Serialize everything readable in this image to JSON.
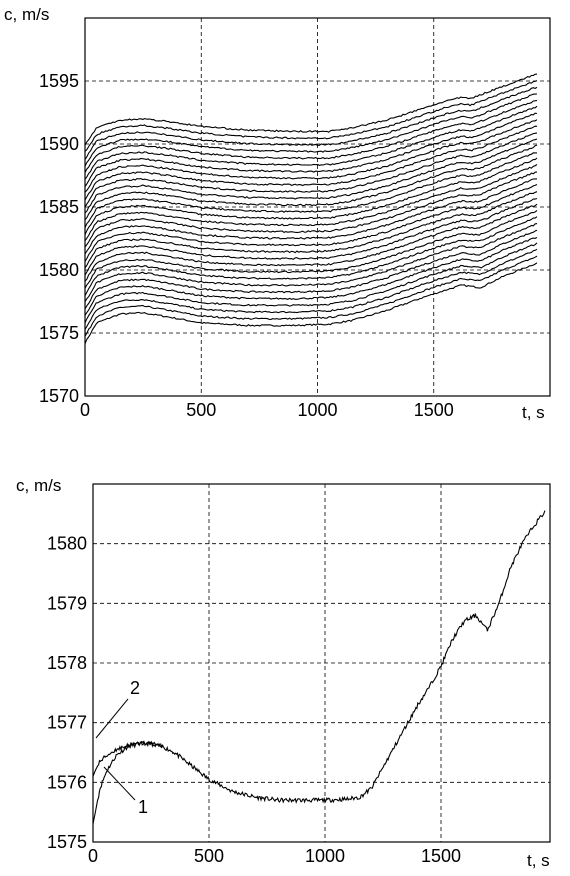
{
  "chart_data": [
    {
      "type": "line",
      "xlabel": "t, s",
      "ylabel": "c, m/s",
      "xlim": [
        0,
        2000
      ],
      "ylim": [
        1570,
        1600
      ],
      "xticks": [
        0,
        500,
        1000,
        1500
      ],
      "yticks": [
        1570,
        1575,
        1580,
        1585,
        1590,
        1595
      ],
      "grid": true,
      "curve_count": 30,
      "lowest_curve": {
        "x": [
          0,
          50,
          150,
          250,
          350,
          500,
          700,
          900,
          1050,
          1150,
          1300,
          1450,
          1550,
          1620,
          1660,
          1700,
          1800,
          1950
        ],
        "y": [
          1574.2,
          1575.8,
          1576.5,
          1576.6,
          1576.3,
          1575.8,
          1575.6,
          1575.6,
          1575.7,
          1576.0,
          1576.8,
          1577.8,
          1578.4,
          1578.8,
          1578.7,
          1578.6,
          1579.5,
          1580.6
        ]
      },
      "highest_curve": {
        "x": [
          0,
          50,
          150,
          250,
          350,
          500,
          700,
          900,
          1050,
          1150,
          1300,
          1450,
          1550,
          1620,
          1660,
          1700,
          1800,
          1950
        ],
        "y": [
          1589.9,
          1591.3,
          1591.9,
          1592.0,
          1591.8,
          1591.4,
          1591.1,
          1591.0,
          1591.0,
          1591.3,
          1591.9,
          1592.8,
          1593.4,
          1593.7,
          1593.6,
          1593.9,
          1594.6,
          1595.6
        ]
      }
    },
    {
      "type": "line",
      "xlabel": "t, s",
      "ylabel": "c, m/s",
      "xlim": [
        0,
        2000
      ],
      "ylim": [
        1575,
        1581
      ],
      "xticks": [
        0,
        500,
        1000,
        1500
      ],
      "yticks": [
        1575,
        1576,
        1577,
        1578,
        1579,
        1580
      ],
      "grid": true,
      "series": [
        {
          "name": "1",
          "x": [
            0,
            10,
            30,
            60,
            100,
            150,
            200,
            250,
            300,
            350,
            400,
            450,
            500,
            550,
            600,
            700,
            800,
            900,
            1000,
            1100,
            1150,
            1200,
            1300,
            1400,
            1450,
            1500,
            1550,
            1600,
            1650,
            1700,
            1750,
            1800,
            1850,
            1900,
            1950
          ],
          "y": [
            1575.3,
            1575.5,
            1575.9,
            1576.2,
            1576.45,
            1576.6,
            1576.65,
            1576.65,
            1576.6,
            1576.5,
            1576.35,
            1576.2,
            1576.05,
            1575.95,
            1575.85,
            1575.75,
            1575.7,
            1575.7,
            1575.7,
            1575.72,
            1575.75,
            1575.9,
            1576.6,
            1577.3,
            1577.6,
            1577.95,
            1578.4,
            1578.7,
            1578.8,
            1578.55,
            1579.0,
            1579.6,
            1580.0,
            1580.3,
            1580.55
          ]
        },
        {
          "name": "2",
          "x": [
            0,
            10,
            30,
            60,
            100,
            150,
            200,
            250,
            300
          ],
          "y": [
            1576.1,
            1576.2,
            1576.35,
            1576.45,
            1576.55,
            1576.62,
            1576.65,
            1576.65,
            1576.6
          ]
        }
      ]
    }
  ]
}
